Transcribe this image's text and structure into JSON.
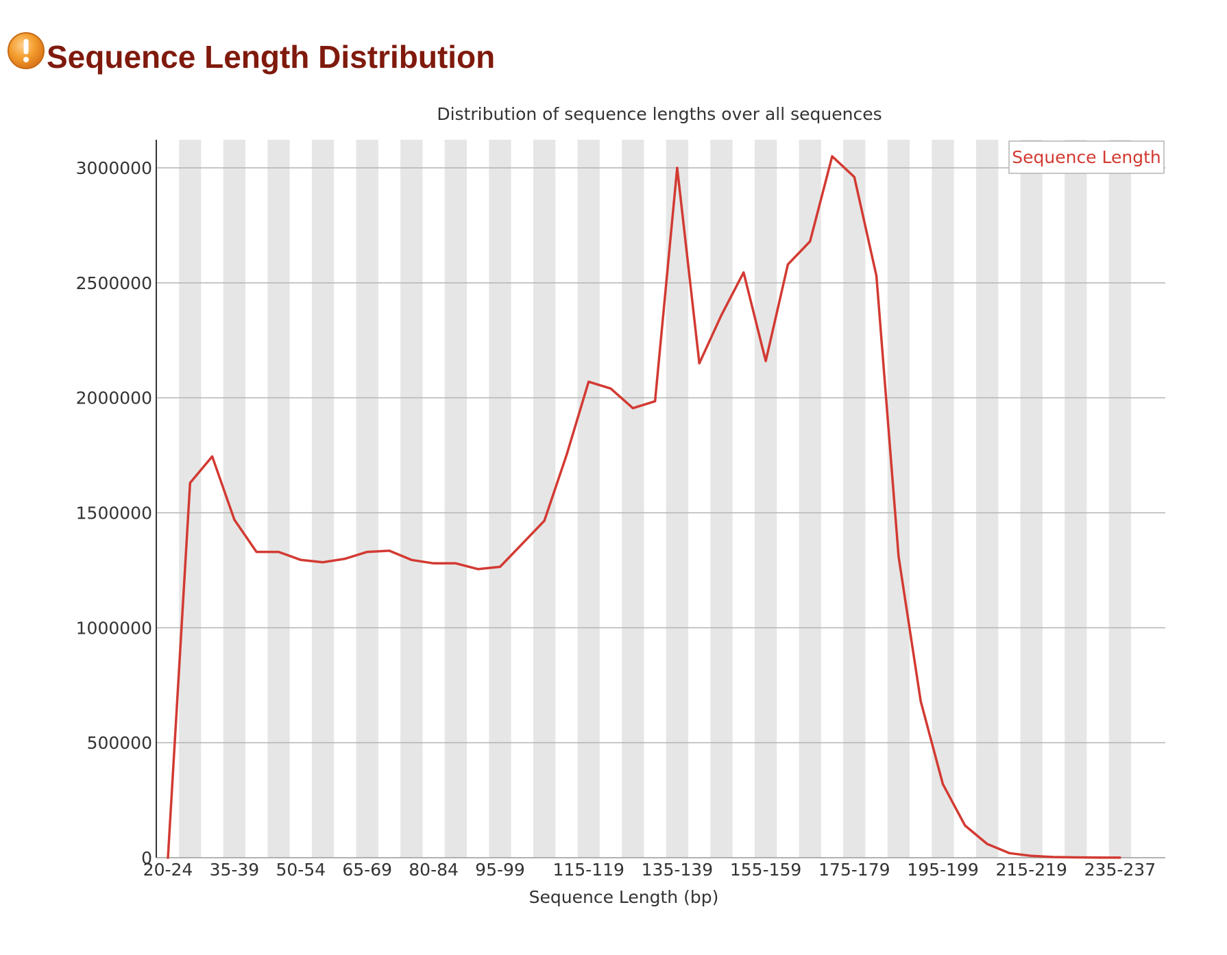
{
  "page": {
    "title": "Sequence Length Distribution",
    "status_icon": "warning-icon"
  },
  "colors": {
    "title": "#7f1a0d",
    "line": "#d23a32",
    "band": "#e6e6e6",
    "grid": "#b4b4b4",
    "warning": "#f39c2c"
  },
  "chart_data": {
    "type": "line",
    "title": "Distribution of sequence lengths over all sequences",
    "xlabel": "Sequence Length (bp)",
    "ylabel": "",
    "ylim": [
      0,
      3000000
    ],
    "yticks": [
      0,
      500000,
      1000000,
      1500000,
      2000000,
      2500000,
      3000000
    ],
    "grid": true,
    "alternating_bands": true,
    "legend": {
      "position": "top-right",
      "entries": [
        "Sequence Length"
      ]
    },
    "categories": [
      "20-24",
      "25-29",
      "30-34",
      "35-39",
      "40-44",
      "45-49",
      "50-54",
      "55-59",
      "60-64",
      "65-69",
      "70-74",
      "75-79",
      "80-84",
      "85-89",
      "90-94",
      "95-99",
      "100-104",
      "105-109",
      "110-114",
      "115-119",
      "120-124",
      "125-129",
      "130-134",
      "135-139",
      "140-144",
      "145-149",
      "150-154",
      "155-159",
      "160-164",
      "165-169",
      "170-174",
      "175-179",
      "180-184",
      "185-189",
      "190-194",
      "195-199",
      "200-204",
      "205-209",
      "210-214",
      "215-219",
      "220-224",
      "225-229",
      "230-234",
      "235-237"
    ],
    "tick_labels": [
      "20-24",
      "35-39",
      "50-54",
      "65-69",
      "80-84",
      "95-99",
      "115-119",
      "135-139",
      "155-159",
      "175-179",
      "195-199",
      "215-219",
      "235-237"
    ],
    "series": [
      {
        "name": "Sequence Length",
        "values": [
          0,
          1630000,
          1745000,
          1470000,
          1330000,
          1330000,
          1295000,
          1285000,
          1300000,
          1330000,
          1335000,
          1295000,
          1280000,
          1280000,
          1255000,
          1265000,
          1365000,
          1465000,
          1750000,
          2070000,
          2040000,
          1955000,
          1985000,
          3000000,
          2150000,
          2360000,
          2545000,
          2160000,
          2580000,
          2680000,
          3050000,
          2960000,
          2530000,
          1310000,
          680000,
          320000,
          140000,
          60000,
          20000,
          8000,
          3000,
          1500,
          800,
          300
        ]
      }
    ]
  }
}
